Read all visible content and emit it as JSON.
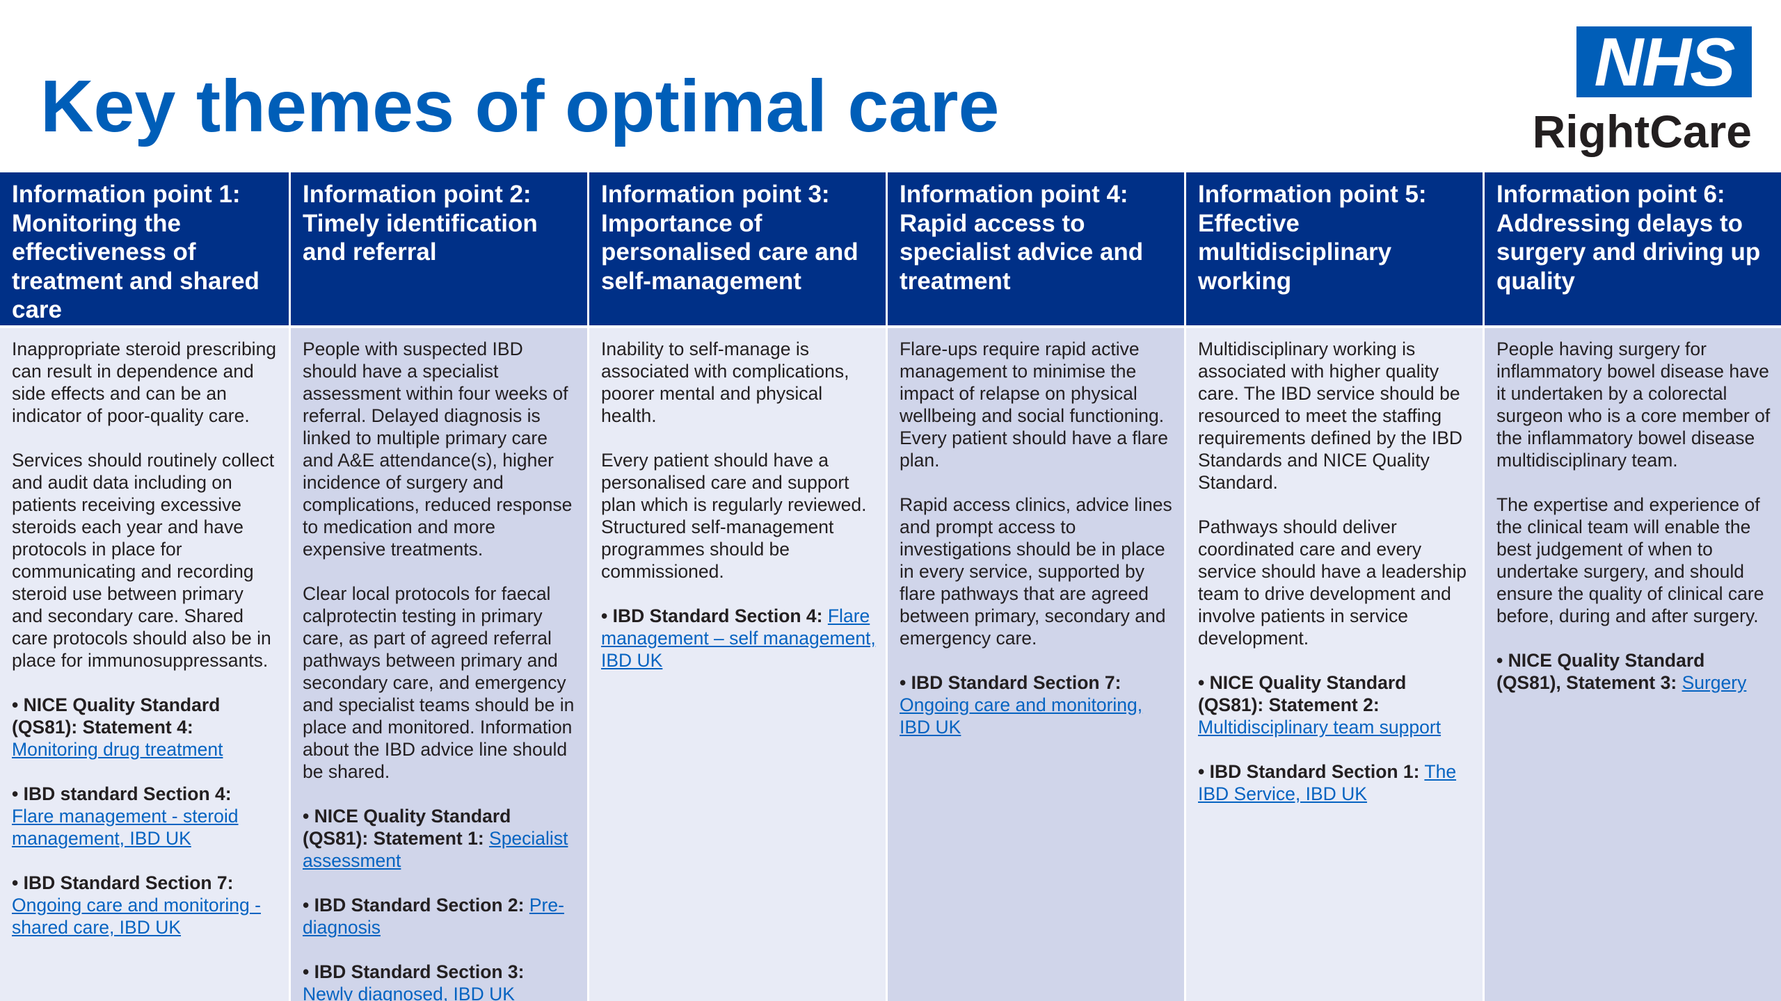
{
  "slide": {
    "title": "Key themes of optimal care"
  },
  "logo": {
    "nhs": "NHS",
    "rightcare": "RightCare",
    "brand_color": "#005EB8"
  },
  "colors": {
    "header_bg": "#003087",
    "body_light": "#e8ebf6",
    "body_dark": "#d0d5ea",
    "link": "#0563C1"
  },
  "columns": [
    {
      "header": "Information point 1: Monitoring the effectiveness of treatment and shared care",
      "paragraphs": [
        "Inappropriate steroid prescribing can result in dependence and side effects and can be an indicator of poor-quality care.",
        "Services should routinely collect and audit data including on patients receiving excessive steroids each year and have protocols in place for communicating and recording steroid use between primary and secondary care. Shared care protocols should also be in place for immunosuppressants."
      ],
      "refs": [
        {
          "label": "• NICE Quality Standard (QS81): Statement 4:",
          "link": "Monitoring drug treatment"
        },
        {
          "label": "• IBD standard Section 4:",
          "link": "Flare management - steroid management, IBD UK"
        },
        {
          "label": "• IBD Standard Section 7:",
          "link": "Ongoing care and monitoring - shared care, IBD UK"
        }
      ]
    },
    {
      "header": "Information point 2: Timely identification and referral",
      "paragraphs": [
        "People with suspected IBD should have a specialist assessment within four weeks of referral. Delayed diagnosis is linked to multiple primary care and A&E attendance(s), higher incidence of surgery and complications, reduced response to medication and more expensive treatments.",
        "Clear local protocols for faecal calprotectin testing in primary care, as part of agreed referral pathways between primary and secondary care, and emergency and specialist teams should be in place and monitored. Information about the IBD advice line should be shared."
      ],
      "refs": [
        {
          "label": "• NICE Quality Standard (QS81): Statement 1:",
          "link": "Specialist assessment"
        },
        {
          "label": "• IBD Standard Section 2:",
          "link": "Pre-diagnosis"
        },
        {
          "label": "• IBD Standard Section 3:",
          "link": "Newly diagnosed, IBD UK"
        }
      ]
    },
    {
      "header": "Information point 3: Importance of personalised care and self-management",
      "paragraphs": [
        "Inability to self-manage is associated with complications, poorer mental and physical health.",
        "Every patient should have a personalised care and support plan which is regularly reviewed. Structured self-management programmes should be commissioned."
      ],
      "refs": [
        {
          "label": "• IBD Standard Section 4:",
          "link": "Flare management – self management, IBD UK"
        }
      ]
    },
    {
      "header": "Information point 4: Rapid access to specialist advice and treatment",
      "paragraphs": [
        "Flare-ups require rapid active management to minimise the impact of relapse on physical wellbeing and social functioning. Every patient should have a flare plan.",
        "Rapid access clinics, advice lines and prompt access to investigations should be in place in every service, supported by flare pathways that are agreed between primary, secondary and emergency care."
      ],
      "refs": [
        {
          "label": "• IBD Standard Section 7:",
          "link": "Ongoing care and monitoring, IBD UK"
        }
      ]
    },
    {
      "header": "Information point 5: Effective multidisciplinary working",
      "paragraphs": [
        "Multidisciplinary working is associated with higher quality care. The IBD service should be resourced to meet the staffing requirements defined by the IBD Standards and NICE Quality Standard.",
        "Pathways should deliver coordinated care and every service should have a leadership team to drive development and involve patients in service development."
      ],
      "refs": [
        {
          "label": "• NICE Quality Standard (QS81): Statement 2:",
          "link": "Multidisciplinary team support"
        },
        {
          "label": "• IBD Standard Section 1:",
          "link": "The IBD Service, IBD UK"
        }
      ]
    },
    {
      "header": "Information point 6: Addressing delays to surgery and driving up quality",
      "paragraphs": [
        "People having surgery for inflammatory bowel disease have it undertaken by a colorectal surgeon who is a core member of the inflammatory bowel disease multidisciplinary team.",
        "The expertise and experience of the clinical team will enable the best judgement of when to undertake surgery, and should ensure the quality of clinical care before, during and after surgery."
      ],
      "refs": [
        {
          "label": "• NICE Quality Standard (QS81), Statement 3:",
          "link": "Surgery"
        }
      ]
    }
  ]
}
